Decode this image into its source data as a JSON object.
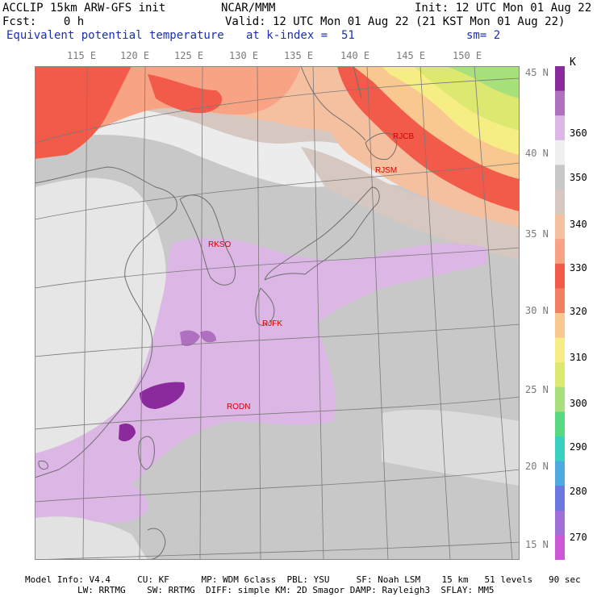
{
  "header": {
    "model": "ACCLIP 15km ARW-GFS init",
    "center": "NCAR/MMM",
    "init": "Init: 12 UTC Mon 01 Aug 22",
    "fcst": "Fcst:    0 h",
    "valid": "Valid: 12 UTC Mon 01 Aug 22 (21 KST Mon 01 Aug 22)",
    "field": "Equivalent potential temperature",
    "level": "at k-index =  51",
    "smooth": "sm= 2"
  },
  "lon_labels": [
    "115 E",
    "120 E",
    "125 E",
    "130 E",
    "135 E",
    "140 E",
    "145 E",
    "150 E"
  ],
  "lat_labels": [
    "45 N",
    "40 N",
    "35 N",
    "30 N",
    "25 N",
    "20 N",
    "15 N"
  ],
  "stations": [
    {
      "id": "RJCB",
      "lon": 142.8,
      "lat": 42.6
    },
    {
      "id": "RJSM",
      "lon": 141.4,
      "lat": 40.7
    },
    {
      "id": "RKSO",
      "lon": 127.0,
      "lat": 37.1
    },
    {
      "id": "RJFK",
      "lon": 130.7,
      "lat": 31.8
    },
    {
      "id": "RODN",
      "lon": 127.8,
      "lat": 26.4
    }
  ],
  "colorbar": {
    "unit": "K",
    "labels": [
      "360",
      "350",
      "340",
      "330",
      "320",
      "310",
      "300",
      "290",
      "280",
      "270"
    ],
    "colors": [
      "#8a2a9c",
      "#b070c0",
      "#dcb6e4",
      "#f0f0f0",
      "#c8c8c8",
      "#d6c8c0",
      "#f5c0a0",
      "#f7a384",
      "#f25a4a",
      "#f08060",
      "#f8c890",
      "#f6ee84",
      "#dce870",
      "#a8e07c",
      "#58d880",
      "#3ad0c0",
      "#50a8e0",
      "#6a78e0",
      "#a070d8",
      "#cc58d8"
    ]
  },
  "footer": {
    "line1": "Model Info: V4.4     CU: KF      MP: WDM 6class  PBL: YSU     SF: Noah LSM    15 km   51 levels   90 sec",
    "line2": "LW: RRTMG    SW: RRTMG  DIFF: simple KM: 2D Smagor DAMP: Rayleigh3  SFLAY: MM5"
  },
  "colors": {
    "land_outline": "#6e6e6e",
    "station_text": "#d20000",
    "header_blue": "#1b2fb0"
  }
}
